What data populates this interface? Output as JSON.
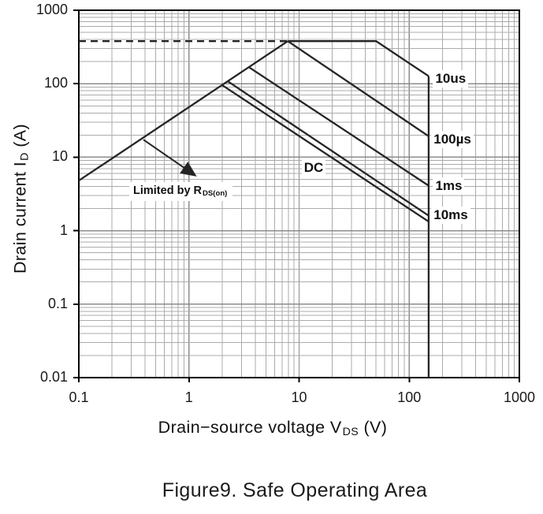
{
  "figure": {
    "caption": "Figure9. Safe Operating Area",
    "x_axis_label": {
      "pre": "Drain−source voltage V",
      "sub": "DS",
      "post": " (V)"
    },
    "y_axis_label": {
      "pre": "Drain current I",
      "sub": "D",
      "post": " (A)"
    },
    "annotation": {
      "pre": "Limited by R",
      "sub": "DS(on)"
    }
  },
  "chart_data": {
    "type": "line",
    "title": "Safe Operating Area",
    "xlabel": "Drain-source voltage VDS (V)",
    "ylabel": "Drain current ID (A)",
    "x_scale": "log",
    "y_scale": "log",
    "xlim": [
      0.1,
      1000
    ],
    "ylim": [
      0.01,
      1000
    ],
    "x_tick_labels": [
      "0.1",
      "1",
      "10",
      "100",
      "1000"
    ],
    "y_tick_labels": [
      "1000",
      "100",
      "10",
      "1",
      "0.1",
      "0.01"
    ],
    "x_tick_values": [
      0.1,
      1,
      10,
      100,
      1000
    ],
    "y_tick_values": [
      1000,
      100,
      10,
      1,
      0.1,
      0.01
    ],
    "grid": "log-minor-and-major",
    "legend_position": "labels-on-curves",
    "colors": {
      "curve": "#242424",
      "grid_minor": "#ababab",
      "grid_major": "#8c8c8c",
      "border": "#000000",
      "text": "#1a1a1a"
    },
    "limits": {
      "vds_max_V": 150,
      "id_pulse_max_A": 380
    },
    "series": [
      {
        "name": "rdson-limit-line",
        "dash": false,
        "points": [
          [
            0.1,
            4.8
          ],
          [
            7.9,
            380
          ]
        ]
      },
      {
        "name": "pulse-current-limit-dashed",
        "dash": true,
        "points": [
          [
            0.1,
            380
          ],
          [
            7.9,
            380
          ]
        ]
      },
      {
        "name": "10us",
        "dash": false,
        "points": [
          [
            7.9,
            380
          ],
          [
            50,
            380
          ],
          [
            150,
            126.7
          ]
        ]
      },
      {
        "name": "100us",
        "dash": false,
        "points": [
          [
            7.9,
            380
          ],
          [
            150,
            19.3
          ]
        ]
      },
      {
        "name": "1ms",
        "dash": false,
        "points": [
          [
            3.5,
            168
          ],
          [
            150,
            4.1
          ]
        ]
      },
      {
        "name": "10ms",
        "dash": false,
        "points": [
          [
            2.25,
            108
          ],
          [
            150,
            1.6
          ]
        ]
      },
      {
        "name": "dc",
        "dash": false,
        "points": [
          [
            2.0,
            96
          ],
          [
            150,
            1.33
          ]
        ]
      },
      {
        "name": "vds-max-line",
        "dash": false,
        "points": [
          [
            150,
            126.7
          ],
          [
            150,
            0.01
          ]
        ]
      }
    ],
    "curve_labels": [
      {
        "text": "10us",
        "v": 170,
        "i": 117
      },
      {
        "text": "100µs",
        "v": 164,
        "i": 17.5
      },
      {
        "text": "1ms",
        "v": 170,
        "i": 4.05
      },
      {
        "text": "10ms",
        "v": 164,
        "i": 1.63
      },
      {
        "text": "DC",
        "v": 10.9,
        "i": 7.1
      }
    ],
    "arrow": {
      "from": [
        0.386,
        17.3
      ],
      "to": [
        1.13,
        5.7
      ]
    }
  }
}
